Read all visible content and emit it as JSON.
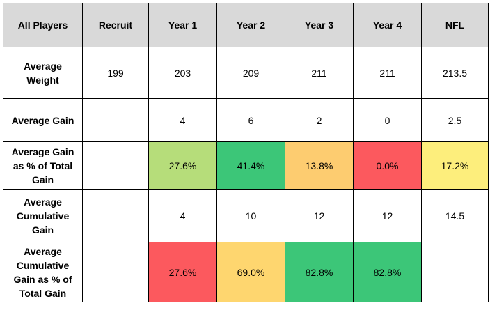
{
  "table": {
    "headers": [
      "All Players",
      "Recruit",
      "Year 1",
      "Year 2",
      "Year 3",
      "Year 4",
      "NFL"
    ],
    "rows": [
      {
        "label": "Average Weight",
        "cells": [
          {
            "text": "199",
            "color": ""
          },
          {
            "text": "203",
            "color": ""
          },
          {
            "text": "209",
            "color": ""
          },
          {
            "text": "211",
            "color": ""
          },
          {
            "text": "211",
            "color": ""
          },
          {
            "text": "213.5",
            "color": ""
          }
        ]
      },
      {
        "label": "Average Gain",
        "cells": [
          {
            "text": "",
            "color": ""
          },
          {
            "text": "4",
            "color": ""
          },
          {
            "text": "6",
            "color": ""
          },
          {
            "text": "2",
            "color": ""
          },
          {
            "text": "0",
            "color": ""
          },
          {
            "text": "2.5",
            "color": ""
          }
        ]
      },
      {
        "label": "Average Gain as % of Total Gain",
        "cells": [
          {
            "text": "",
            "color": ""
          },
          {
            "text": "27.6%",
            "color": "#b6dd7a"
          },
          {
            "text": "41.4%",
            "color": "#3cc678"
          },
          {
            "text": "13.8%",
            "color": "#fdcc70"
          },
          {
            "text": "0.0%",
            "color": "#fc595e"
          },
          {
            "text": "17.2%",
            "color": "#fdee7c"
          }
        ]
      },
      {
        "label": "Average Cumulative Gain",
        "cells": [
          {
            "text": "",
            "color": ""
          },
          {
            "text": "4",
            "color": ""
          },
          {
            "text": "10",
            "color": ""
          },
          {
            "text": "12",
            "color": ""
          },
          {
            "text": "12",
            "color": ""
          },
          {
            "text": "14.5",
            "color": ""
          }
        ]
      },
      {
        "label": "Average Cumulative Gain as % of Total Gain",
        "cells": [
          {
            "text": "",
            "color": ""
          },
          {
            "text": "27.6%",
            "color": "#fc595e"
          },
          {
            "text": "69.0%",
            "color": "#fed66f"
          },
          {
            "text": "82.8%",
            "color": "#3cc678"
          },
          {
            "text": "82.8%",
            "color": "#3cc678"
          },
          {
            "text": "",
            "color": ""
          }
        ]
      }
    ]
  }
}
